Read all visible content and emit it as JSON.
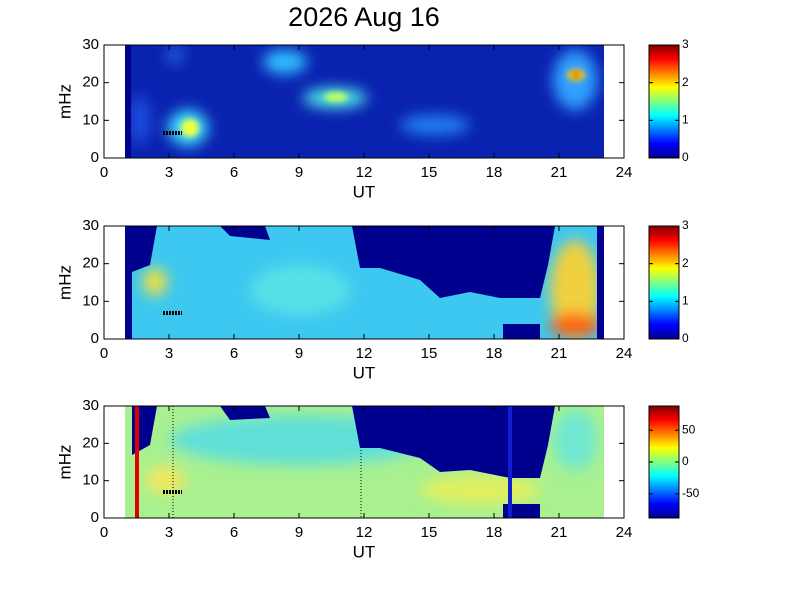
{
  "chart_data": [
    {
      "type": "heatmap",
      "title": "2026 Aug 16",
      "xlabel": "UT",
      "ylabel": "mHz",
      "xlim": [
        0,
        24
      ],
      "xticks": [
        0,
        3,
        6,
        9,
        12,
        15,
        18,
        21,
        24
      ],
      "ylim": [
        0,
        30
      ],
      "yticks": [
        0,
        10,
        20,
        30
      ],
      "colorbar": {
        "clim": [
          0,
          3
        ],
        "ticks": [
          0,
          1,
          2,
          3
        ]
      }
    },
    {
      "type": "heatmap",
      "xlabel": "UT",
      "ylabel": "mHz",
      "xlim": [
        0,
        24
      ],
      "xticks": [
        0,
        3,
        6,
        9,
        12,
        15,
        18,
        21,
        24
      ],
      "ylim": [
        0,
        30
      ],
      "yticks": [
        0,
        10,
        20,
        30
      ],
      "colorbar": {
        "clim": [
          0,
          3
        ],
        "ticks": [
          0,
          1,
          2,
          3
        ]
      }
    },
    {
      "type": "heatmap",
      "xlabel": "UT",
      "ylabel": "mHz",
      "xlim": [
        0,
        24
      ],
      "xticks": [
        0,
        3,
        6,
        9,
        12,
        15,
        18,
        21,
        24
      ],
      "ylim": [
        0,
        30
      ],
      "yticks": [
        0,
        10,
        20,
        30
      ],
      "colorbar": {
        "clim": [
          -88,
          88
        ],
        "ticks": [
          -50,
          0,
          50
        ]
      }
    }
  ]
}
